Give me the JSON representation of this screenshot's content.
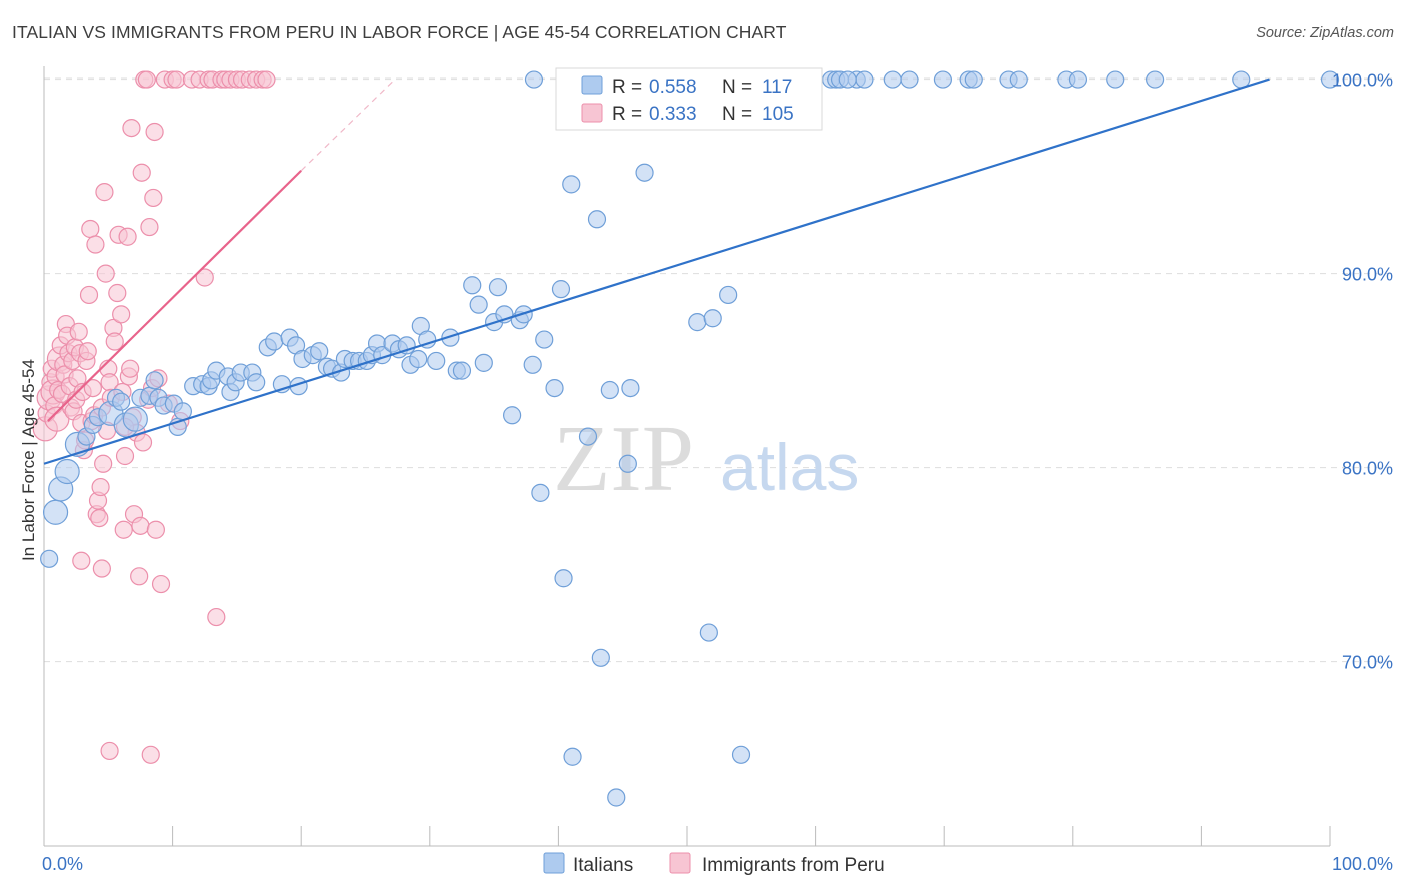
{
  "title": "ITALIAN VS IMMIGRANTS FROM PERU IN LABOR FORCE | AGE 45-54 CORRELATION CHART",
  "source": "Source: ZipAtlas.com",
  "watermark": {
    "zip": "ZIP",
    "atlas": "atlas"
  },
  "colors": {
    "blue_fill": "#aecbef",
    "blue_stroke": "#6f9fd8",
    "blue_line": "#2f72c9",
    "pink_fill": "#f7c5d3",
    "pink_stroke": "#ec8fab",
    "pink_line": "#e8638b",
    "tick_text": "#3a73c4",
    "grid": "#dddddd"
  },
  "legend_top": {
    "rows": [
      {
        "r_label": "R = ",
        "r_value": "0.558",
        "n_label": "N = ",
        "n_value": "117"
      },
      {
        "r_label": "R = ",
        "r_value": "0.333",
        "n_label": "N = ",
        "n_value": "105"
      }
    ]
  },
  "legend_bottom": {
    "italians": "Italians",
    "peru": "Immigrants from Peru"
  },
  "chart_data": {
    "type": "scatter",
    "title": "ITALIAN VS IMMIGRANTS FROM PERU IN LABOR FORCE | AGE 45-54 CORRELATION CHART",
    "xlabel": "",
    "ylabel": "In Labor Force | Age 45-54",
    "xlim": [
      0,
      100
    ],
    "ylim": [
      60.5,
      100.7
    ],
    "x_tick_labels": [
      "0.0%",
      "100.0%"
    ],
    "y_ticks": [
      70,
      80,
      90,
      100
    ],
    "y_tick_labels": [
      "70.0%",
      "80.0%",
      "90.0%",
      "100.0%"
    ],
    "grid": true,
    "legend_position": "top-center",
    "series": [
      {
        "name": "Italians",
        "R": 0.558,
        "N": 117,
        "trend": {
          "x0": 0,
          "y0": 80.2,
          "x1": 95.3,
          "y1": 100.0
        },
        "points": [
          [
            0.4,
            75.3
          ],
          [
            0.9,
            77.7
          ],
          [
            1.3,
            78.9
          ],
          [
            1.8,
            79.8
          ],
          [
            2.6,
            81.2
          ],
          [
            3.3,
            81.6
          ],
          [
            3.8,
            82.2
          ],
          [
            4.2,
            82.6
          ],
          [
            5.2,
            82.8
          ],
          [
            5.6,
            83.6
          ],
          [
            6.0,
            83.4
          ],
          [
            6.4,
            82.2
          ],
          [
            7.1,
            82.5
          ],
          [
            7.5,
            83.6
          ],
          [
            8.2,
            83.7
          ],
          [
            8.6,
            84.5
          ],
          [
            8.9,
            83.6
          ],
          [
            9.3,
            83.2
          ],
          [
            10.1,
            83.3
          ],
          [
            10.4,
            82.1
          ],
          [
            10.8,
            82.9
          ],
          [
            11.6,
            84.2
          ],
          [
            12.3,
            84.3
          ],
          [
            12.8,
            84.2
          ],
          [
            13.0,
            84.5
          ],
          [
            13.4,
            85.0
          ],
          [
            14.3,
            84.7
          ],
          [
            14.5,
            83.9
          ],
          [
            14.9,
            84.4
          ],
          [
            15.3,
            84.9
          ],
          [
            16.2,
            84.9
          ],
          [
            16.5,
            84.4
          ],
          [
            17.4,
            86.2
          ],
          [
            17.9,
            86.5
          ],
          [
            18.5,
            84.3
          ],
          [
            19.1,
            86.7
          ],
          [
            19.6,
            86.3
          ],
          [
            19.8,
            84.2
          ],
          [
            20.1,
            85.6
          ],
          [
            20.9,
            85.8
          ],
          [
            21.4,
            86.0
          ],
          [
            22.0,
            85.2
          ],
          [
            22.4,
            85.1
          ],
          [
            23.1,
            84.9
          ],
          [
            23.4,
            85.6
          ],
          [
            24.0,
            85.5
          ],
          [
            24.5,
            85.5
          ],
          [
            25.1,
            85.5
          ],
          [
            25.5,
            85.8
          ],
          [
            25.9,
            86.4
          ],
          [
            26.3,
            85.8
          ],
          [
            27.1,
            86.4
          ],
          [
            27.6,
            86.1
          ],
          [
            28.2,
            86.3
          ],
          [
            28.5,
            85.3
          ],
          [
            29.1,
            85.6
          ],
          [
            29.3,
            87.3
          ],
          [
            29.8,
            86.6
          ],
          [
            30.5,
            85.5
          ],
          [
            31.6,
            86.7
          ],
          [
            32.1,
            85.0
          ],
          [
            32.5,
            85.0
          ],
          [
            33.3,
            89.4
          ],
          [
            33.8,
            88.4
          ],
          [
            34.2,
            85.4
          ],
          [
            35.0,
            87.5
          ],
          [
            35.3,
            89.3
          ],
          [
            35.8,
            87.9
          ],
          [
            36.4,
            82.7
          ],
          [
            37.0,
            87.6
          ],
          [
            37.3,
            87.9
          ],
          [
            38.0,
            85.3
          ],
          [
            38.6,
            78.7
          ],
          [
            38.9,
            86.6
          ],
          [
            39.7,
            84.1
          ],
          [
            40.2,
            89.2
          ],
          [
            40.4,
            74.3
          ],
          [
            41.0,
            94.6
          ],
          [
            41.1,
            65.1
          ],
          [
            42.3,
            81.6
          ],
          [
            43.0,
            92.8
          ],
          [
            43.3,
            70.2
          ],
          [
            44.0,
            84.0
          ],
          [
            44.5,
            63.0
          ],
          [
            45.4,
            80.2
          ],
          [
            45.6,
            84.1
          ],
          [
            46.7,
            95.2
          ],
          [
            50.8,
            87.5
          ],
          [
            51.7,
            71.5
          ],
          [
            52.0,
            87.7
          ],
          [
            52.7,
            100
          ],
          [
            53.2,
            88.9
          ],
          [
            54.2,
            65.2
          ],
          [
            54.9,
            100
          ],
          [
            55.5,
            100
          ],
          [
            56.3,
            100
          ],
          [
            57.0,
            100
          ],
          [
            57.5,
            100
          ],
          [
            58.1,
            100
          ],
          [
            59.1,
            100
          ],
          [
            59.9,
            100
          ],
          [
            61.2,
            100
          ],
          [
            61.6,
            100
          ],
          [
            61.9,
            100
          ],
          [
            63.2,
            100
          ],
          [
            63.8,
            100
          ],
          [
            66.0,
            100
          ],
          [
            67.3,
            100
          ],
          [
            69.9,
            100
          ],
          [
            71.9,
            100
          ],
          [
            72.3,
            100
          ],
          [
            75.0,
            100
          ],
          [
            75.8,
            100
          ],
          [
            79.5,
            100
          ],
          [
            80.4,
            100
          ],
          [
            83.3,
            100
          ],
          [
            86.4,
            100
          ],
          [
            93.1,
            100
          ],
          [
            100.0,
            100
          ],
          [
            38.1,
            100
          ],
          [
            40.8,
            100
          ],
          [
            45.9,
            100
          ],
          [
            47.2,
            100
          ],
          [
            49.8,
            100
          ],
          [
            55.2,
            100
          ],
          [
            62.5,
            100
          ],
          [
            58.9,
            100
          ]
        ],
        "large_points": [
          [
            0.9,
            77.7
          ],
          [
            1.3,
            78.9
          ],
          [
            1.8,
            79.8
          ],
          [
            2.6,
            81.2
          ],
          [
            6.4,
            82.2
          ],
          [
            7.1,
            82.5
          ],
          [
            5.2,
            82.8
          ]
        ]
      },
      {
        "name": "Immigrants from Peru",
        "R": 0.333,
        "N": 105,
        "trend": {
          "x0": 0.3,
          "y0": 82.4,
          "x1": 20.0,
          "y1": 95.3
        },
        "trend_dashed_to": {
          "x": 27.3,
          "y": 100.0
        },
        "points": [
          [
            0.1,
            82.0
          ],
          [
            0.2,
            82.8
          ],
          [
            0.4,
            83.6
          ],
          [
            0.5,
            84.4
          ],
          [
            0.6,
            85.1
          ],
          [
            0.7,
            83.9
          ],
          [
            0.8,
            83.2
          ],
          [
            0.9,
            84.7
          ],
          [
            1.0,
            82.5
          ],
          [
            1.1,
            84.0
          ],
          [
            1.2,
            85.6
          ],
          [
            1.3,
            86.3
          ],
          [
            1.4,
            83.8
          ],
          [
            1.5,
            85.3
          ],
          [
            1.6,
            84.8
          ],
          [
            1.7,
            87.4
          ],
          [
            1.8,
            86.8
          ],
          [
            1.9,
            85.9
          ],
          [
            2.0,
            84.2
          ],
          [
            2.1,
            83.1
          ],
          [
            2.2,
            85.5
          ],
          [
            2.3,
            82.9
          ],
          [
            2.4,
            86.2
          ],
          [
            2.5,
            83.5
          ],
          [
            2.6,
            84.6
          ],
          [
            2.7,
            87.0
          ],
          [
            2.8,
            85.9
          ],
          [
            2.9,
            82.3
          ],
          [
            3.0,
            83.9
          ],
          [
            3.1,
            80.9
          ],
          [
            3.2,
            81.4
          ],
          [
            3.3,
            85.5
          ],
          [
            3.4,
            86.0
          ],
          [
            3.5,
            88.9
          ],
          [
            3.6,
            92.3
          ],
          [
            3.7,
            82.4
          ],
          [
            3.8,
            84.1
          ],
          [
            3.9,
            82.7
          ],
          [
            4.0,
            91.5
          ],
          [
            4.1,
            77.6
          ],
          [
            4.2,
            78.3
          ],
          [
            4.3,
            77.4
          ],
          [
            4.4,
            79.0
          ],
          [
            4.5,
            83.1
          ],
          [
            4.6,
            80.2
          ],
          [
            4.7,
            94.2
          ],
          [
            4.8,
            90.0
          ],
          [
            4.9,
            81.9
          ],
          [
            5.0,
            85.1
          ],
          [
            5.1,
            84.4
          ],
          [
            5.2,
            83.6
          ],
          [
            5.4,
            87.2
          ],
          [
            5.5,
            86.5
          ],
          [
            5.7,
            89.0
          ],
          [
            5.8,
            92.0
          ],
          [
            6.0,
            87.9
          ],
          [
            6.1,
            83.9
          ],
          [
            6.2,
            76.8
          ],
          [
            6.3,
            80.6
          ],
          [
            6.5,
            91.9
          ],
          [
            6.6,
            84.7
          ],
          [
            6.7,
            85.1
          ],
          [
            6.8,
            97.5
          ],
          [
            6.9,
            82.6
          ],
          [
            7.0,
            77.6
          ],
          [
            7.2,
            81.8
          ],
          [
            7.4,
            74.4
          ],
          [
            7.5,
            77.0
          ],
          [
            7.6,
            95.2
          ],
          [
            7.7,
            81.3
          ],
          [
            7.8,
            100
          ],
          [
            8.0,
            100
          ],
          [
            8.1,
            83.5
          ],
          [
            8.2,
            92.4
          ],
          [
            8.3,
            65.2
          ],
          [
            8.4,
            84.1
          ],
          [
            8.5,
            93.9
          ],
          [
            8.6,
            97.3
          ],
          [
            8.7,
            76.8
          ],
          [
            8.9,
            84.6
          ],
          [
            9.1,
            74.0
          ],
          [
            9.4,
            100
          ],
          [
            9.7,
            83.3
          ],
          [
            10.0,
            100
          ],
          [
            10.3,
            100
          ],
          [
            10.6,
            82.4
          ],
          [
            11.5,
            100
          ],
          [
            12.1,
            100
          ],
          [
            12.8,
            100
          ],
          [
            13.1,
            100
          ],
          [
            13.4,
            72.3
          ],
          [
            13.8,
            100
          ],
          [
            14.1,
            100
          ],
          [
            14.5,
            100
          ],
          [
            15.0,
            100
          ],
          [
            15.4,
            100
          ],
          [
            16.0,
            100
          ],
          [
            16.5,
            100
          ],
          [
            17.0,
            100
          ],
          [
            17.3,
            100
          ],
          [
            4.5,
            74.8
          ],
          [
            2.9,
            75.2
          ],
          [
            5.1,
            65.4
          ],
          [
            6.3,
            82.1
          ],
          [
            12.5,
            89.8
          ]
        ],
        "large_points": [
          [
            0.1,
            82.0
          ],
          [
            0.4,
            83.6
          ],
          [
            0.7,
            83.9
          ],
          [
            1.0,
            82.5
          ],
          [
            1.2,
            85.6
          ]
        ]
      }
    ]
  }
}
